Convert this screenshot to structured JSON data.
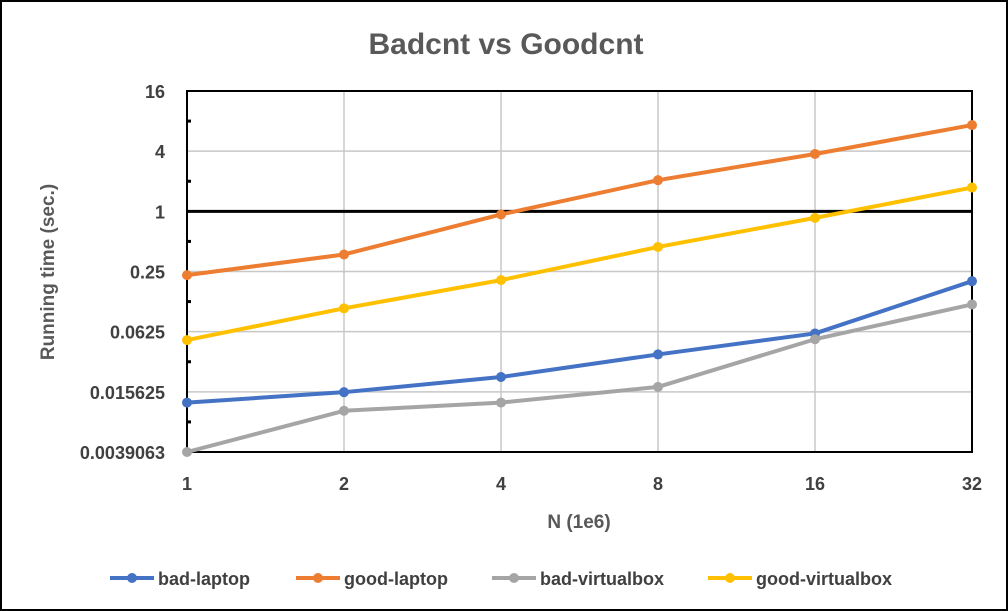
{
  "chart_data": {
    "type": "line",
    "title": "Badcnt vs Goodcnt",
    "xlabel": "N (1e6)",
    "ylabel": "Running time (sec.)",
    "x_scale": "log2",
    "y_scale": "log2",
    "categories": [
      "1",
      "2",
      "4",
      "8",
      "16",
      "32"
    ],
    "x": [
      1,
      2,
      4,
      8,
      16,
      32
    ],
    "y_ticks": [
      "16",
      "4",
      "1",
      "0.25",
      "0.0625",
      "0.015625",
      "0.0039063"
    ],
    "y_tick_values": [
      16,
      4,
      1,
      0.25,
      0.0625,
      0.015625,
      0.0039063
    ],
    "ylim": [
      0.0039063,
      16
    ],
    "grid": true,
    "legend_position": "bottom",
    "series": [
      {
        "name": "bad-laptop",
        "color": "#4472C4",
        "values": [
          0.0122,
          0.0155,
          0.022,
          0.037,
          0.06,
          0.2
        ]
      },
      {
        "name": "good-laptop",
        "color": "#ED7D31",
        "values": [
          0.23,
          0.37,
          0.93,
          2.05,
          3.75,
          7.3
        ]
      },
      {
        "name": "bad-virtualbox",
        "color": "#A5A5A5",
        "values": [
          0.0039063,
          0.0101,
          0.0122,
          0.0175,
          0.0525,
          0.117
        ]
      },
      {
        "name": "good-virtualbox",
        "color": "#FFC000",
        "values": [
          0.0515,
          0.107,
          0.205,
          0.44,
          0.86,
          1.73
        ]
      }
    ]
  }
}
